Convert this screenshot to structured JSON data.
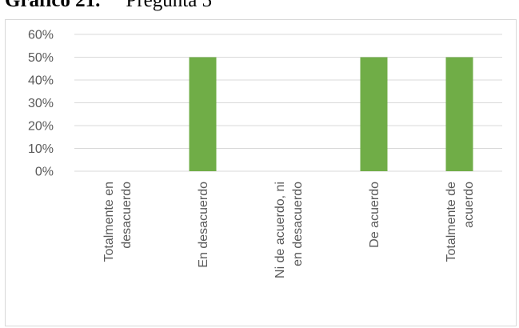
{
  "heading": {
    "label": "Gráfico 21.",
    "text": "Pregunta 5"
  },
  "chart_data": {
    "type": "bar",
    "categories": [
      [
        "Totalmente en",
        "desacuerdo"
      ],
      [
        "En desacuerdo"
      ],
      [
        "Ni de acuerdo, ni",
        "en desacuerdo"
      ],
      [
        "De acuerdo"
      ],
      [
        "Totalmente de",
        "acuerdo"
      ]
    ],
    "values": [
      0,
      50,
      0,
      50,
      50
    ],
    "ylim": [
      0,
      60
    ],
    "yticks": [
      0,
      10,
      20,
      30,
      40,
      50,
      60
    ],
    "ytick_labels": [
      "0%",
      "10%",
      "20%",
      "30%",
      "40%",
      "50%",
      "60%"
    ],
    "bar_color": "#70ad47",
    "grid_color": "#d9d9d9",
    "grid": true,
    "xlabel": "",
    "ylabel": "",
    "title": ""
  }
}
